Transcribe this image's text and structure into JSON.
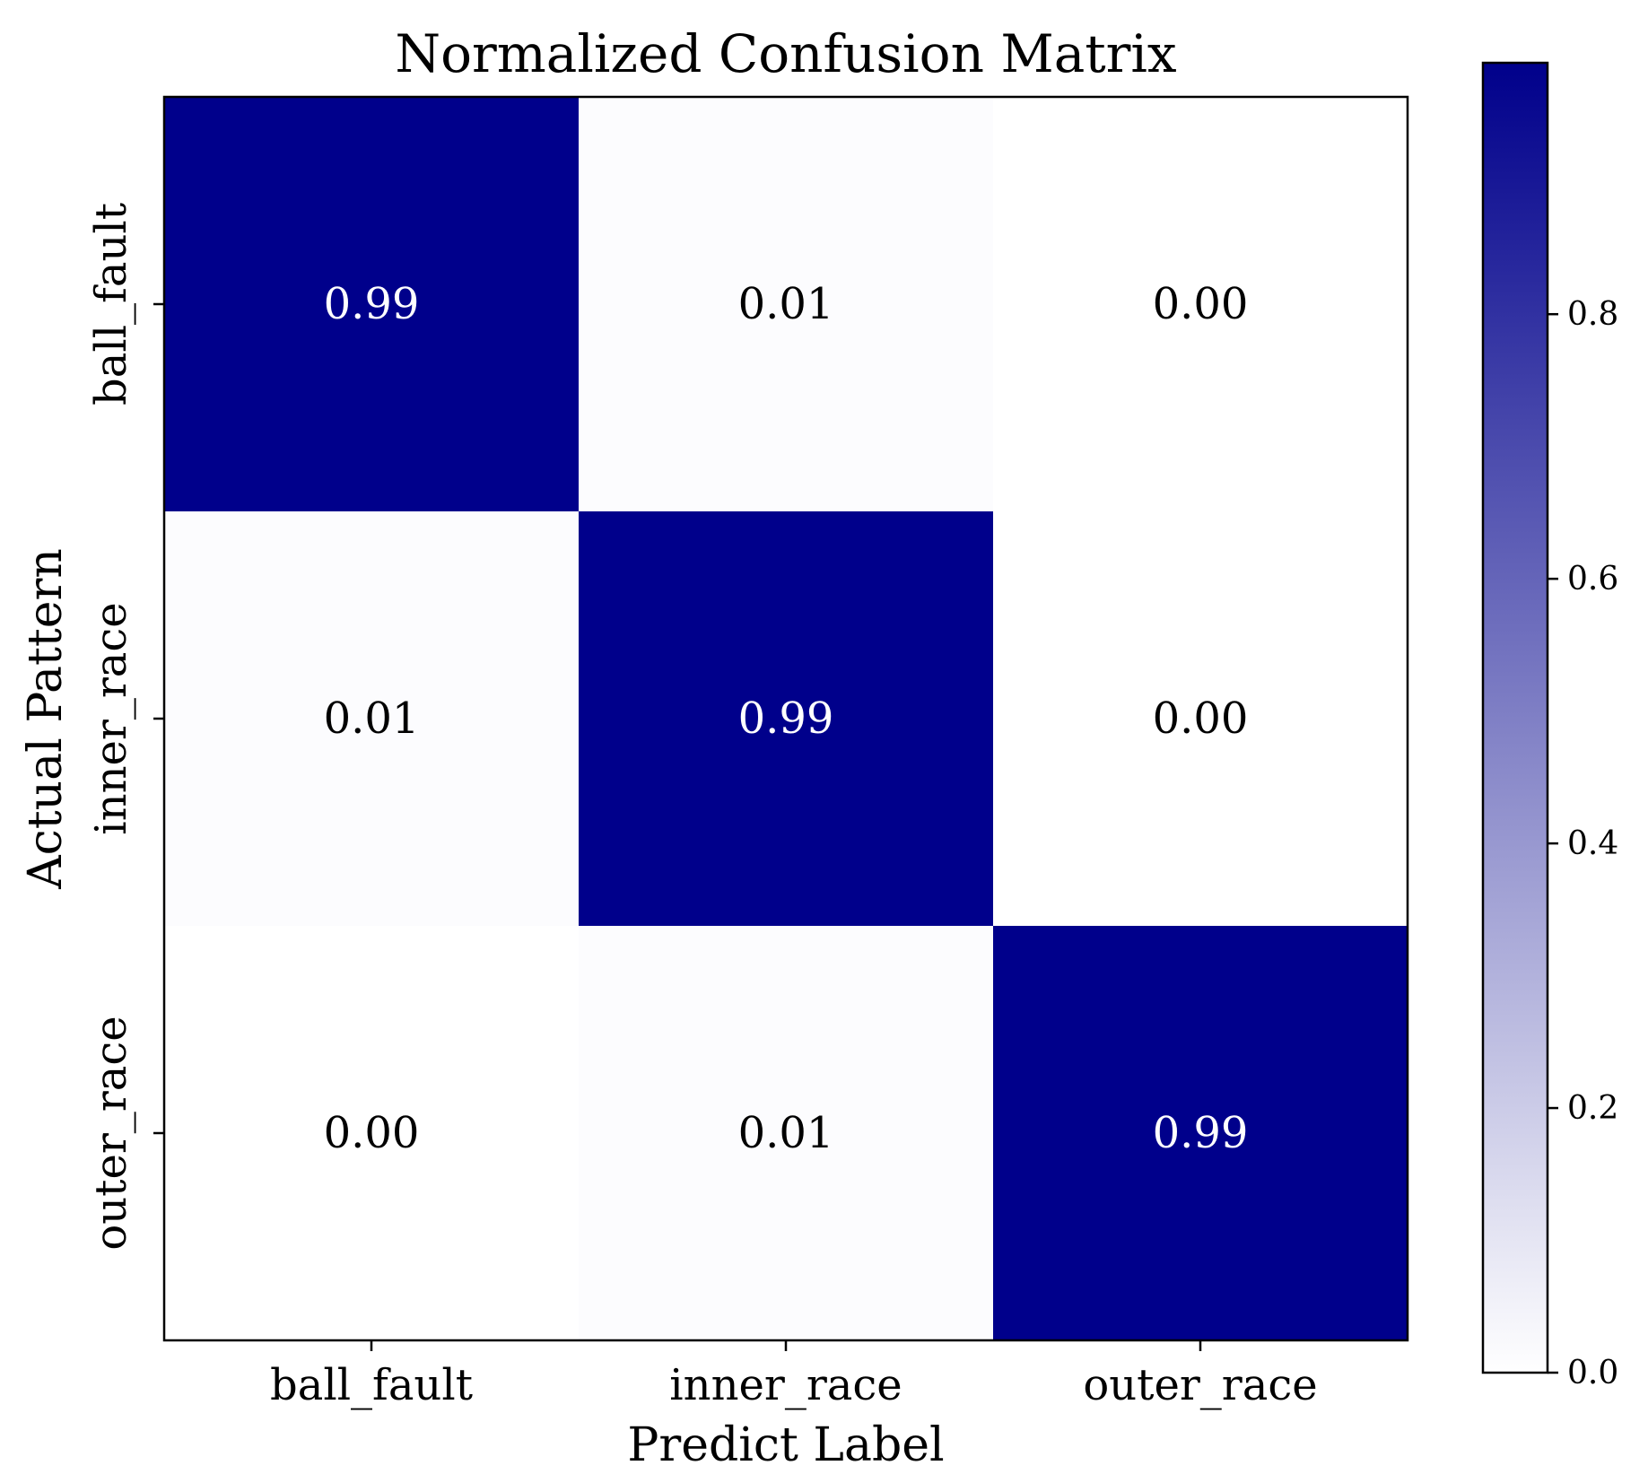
{
  "chart_data": {
    "type": "heatmap",
    "title": "Normalized Confusion Matrix",
    "xlabel": "Predict Label",
    "ylabel": "Actual Pattern",
    "x_categories": [
      "ball_fault",
      "inner_race",
      "outer_race"
    ],
    "y_categories": [
      "ball_fault",
      "inner_race",
      "outer_race"
    ],
    "values": [
      [
        0.99,
        0.01,
        0.0
      ],
      [
        0.01,
        0.99,
        0.0
      ],
      [
        0.0,
        0.01,
        0.99
      ]
    ],
    "cell_labels": [
      [
        "0.99",
        "0.01",
        "0.00"
      ],
      [
        "0.01",
        "0.99",
        "0.00"
      ],
      [
        "0.00",
        "0.01",
        "0.99"
      ]
    ],
    "colorbar": {
      "range": [
        0,
        0.99
      ],
      "ticks": [
        0.0,
        0.2,
        0.4,
        0.6,
        0.8
      ],
      "tick_labels": [
        "0.0",
        "0.2",
        "0.4",
        "0.6",
        "0.8"
      ],
      "color_low": "#ffffff",
      "color_high": "#00008b"
    },
    "grid": false,
    "legend": "none"
  }
}
